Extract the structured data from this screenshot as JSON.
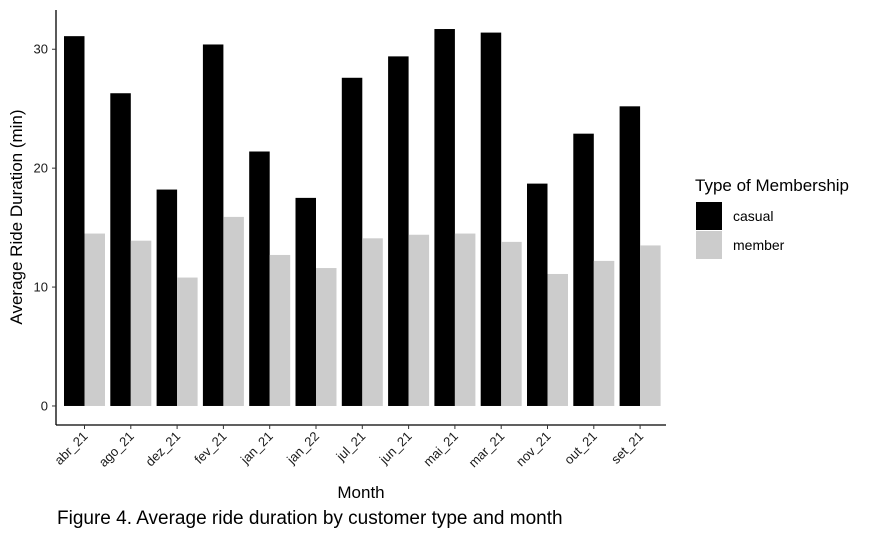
{
  "chart_data": {
    "type": "bar",
    "categories": [
      "abr_21",
      "ago_21",
      "dez_21",
      "fev_21",
      "jan_21",
      "jan_22",
      "jul_21",
      "jun_21",
      "mai_21",
      "mar_21",
      "nov_21",
      "out_21",
      "set_21"
    ],
    "series": [
      {
        "name": "casual",
        "color": "#000000",
        "values": [
          31.1,
          26.3,
          18.2,
          30.4,
          21.4,
          17.5,
          27.6,
          29.4,
          31.7,
          31.4,
          18.7,
          22.9,
          25.2
        ]
      },
      {
        "name": "member",
        "color": "#cccccc",
        "values": [
          14.5,
          13.9,
          10.8,
          15.9,
          12.7,
          11.6,
          14.1,
          14.4,
          14.5,
          13.8,
          11.1,
          12.2,
          13.5
        ]
      }
    ],
    "xlabel": "Month",
    "ylabel": "Average Ride Duration (min)",
    "ylim": [
      -1.6,
      33.3
    ],
    "yticks": [
      0,
      10,
      20,
      30
    ],
    "grid": false,
    "legend": {
      "title": "Type of Membership",
      "position": "right"
    }
  },
  "caption": "Figure 4. Average ride duration by customer type and month"
}
